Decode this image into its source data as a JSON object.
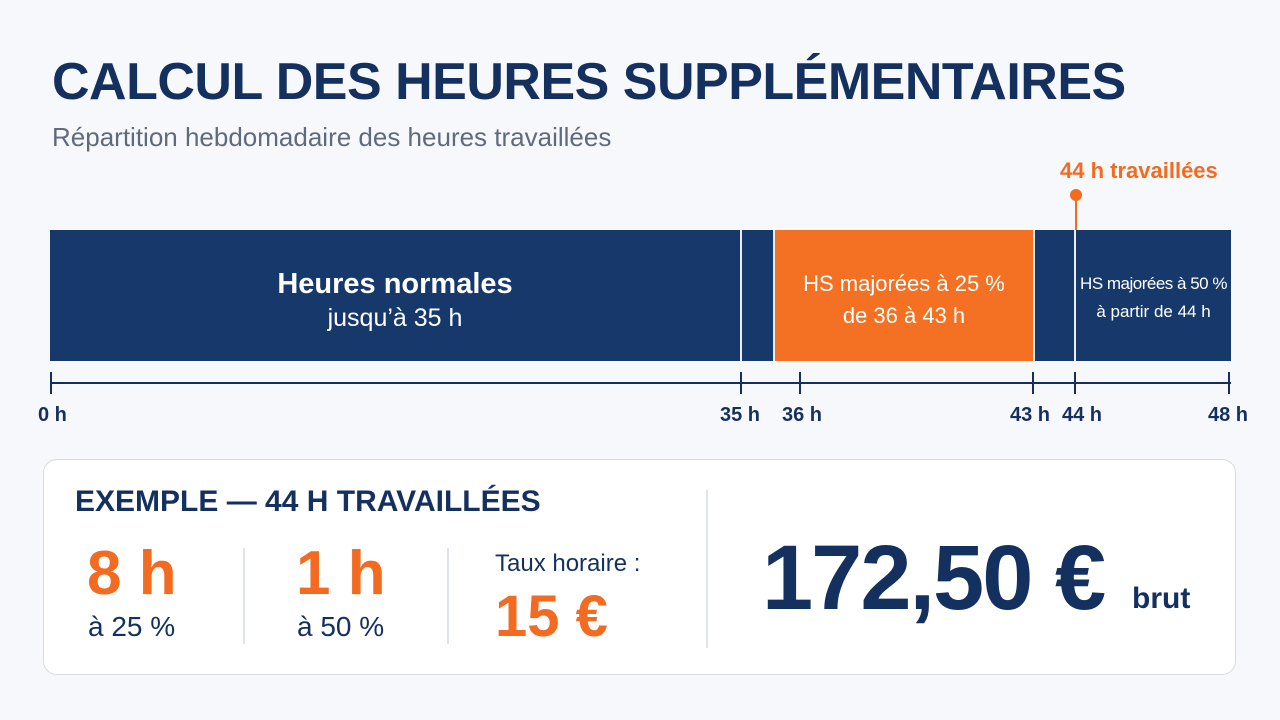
{
  "header": {
    "title": "CALCUL DES HEURES SUPPLÉMENTAIRES",
    "subtitle": "Répartition hebdomadaire des heures travaillées"
  },
  "marker": {
    "label": "44 h travaillées",
    "value_hours": 44
  },
  "bar": {
    "segments": [
      {
        "line1": "Heures normales",
        "line2": "jusqu’à 35 h",
        "from_hours": 0,
        "to_hours": 35,
        "color": "#16386b"
      },
      {
        "line1": "HS majorées à 25 %",
        "line2": "de 36 à 43 h",
        "from_hours": 36,
        "to_hours": 43,
        "color": "#f47023"
      },
      {
        "line1": "HS majorées à 50 %",
        "line2": "à partir de 44 h",
        "from_hours": 44,
        "to_hours": 48,
        "color": "#16386b"
      }
    ]
  },
  "axis": {
    "ticks": [
      "0 h",
      "35 h",
      "36 h",
      "43 h",
      "44 h",
      "48 h"
    ]
  },
  "example": {
    "title": "EXEMPLE — 44 H TRAVAILLÉES",
    "hours_25": {
      "value": "8 h",
      "label": "à 25 %"
    },
    "hours_50": {
      "value": "1 h",
      "label": "à 50 %"
    },
    "rate": {
      "label": "Taux horaire :",
      "value": "15 €"
    },
    "total": {
      "value": "172,50 €",
      "unit": "brut"
    }
  },
  "colors": {
    "navy": "#14305e",
    "orange": "#f26b21"
  }
}
